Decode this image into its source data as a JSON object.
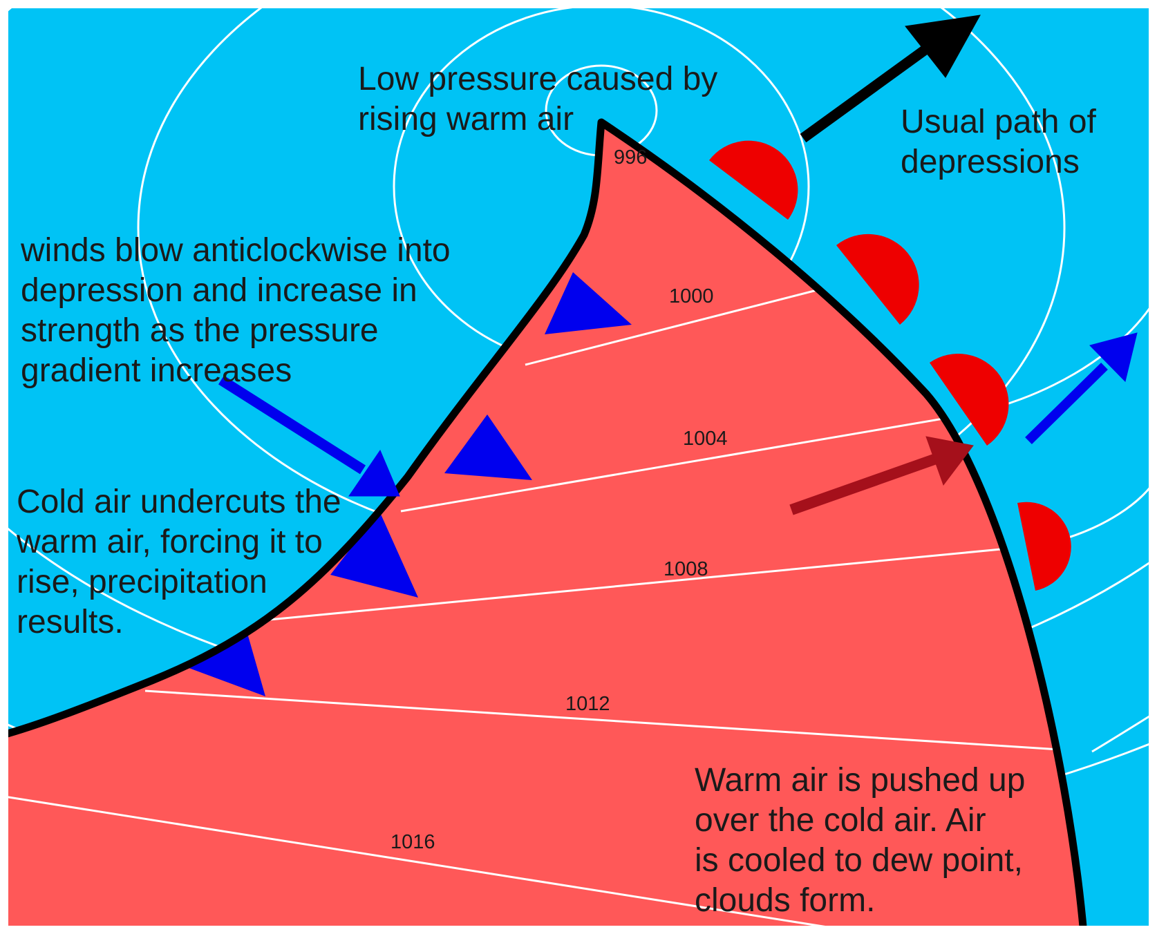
{
  "annotations": {
    "low_pressure": [
      "Low pressure caused by",
      "rising warm air"
    ],
    "usual_path": [
      "Usual path of",
      "depressions"
    ],
    "winds": [
      "winds blow anticlockwise into",
      "depression and increase in",
      "strength as the pressure",
      "gradient increases"
    ],
    "cold_air": [
      "Cold air undercuts the",
      "warm air, forcing it to",
      "rise, precipitation",
      "results."
    ],
    "warm_air": [
      "Warm air is pushed up",
      "over the cold air. Air",
      "is cooled to dew point,",
      "clouds form."
    ]
  },
  "isobars": [
    "996",
    "1000",
    "1004",
    "1008",
    "1012",
    "1016"
  ],
  "colors": {
    "cold_air": "#00c3f5",
    "warm_sector": "#ff5858",
    "isobar": "#ffffff",
    "front_line": "#000000",
    "cold_front_symbol": "#0000ee",
    "warm_front_symbol": "#ee0000",
    "path_arrow": "#000000",
    "wind_arrow": "#0000ee",
    "warm_flow_arrow": "#a5101b",
    "frame": "#ffffff"
  }
}
